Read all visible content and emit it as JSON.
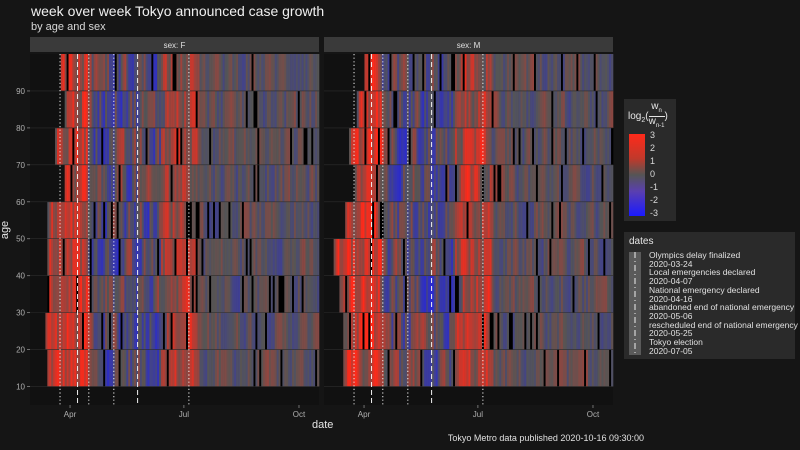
{
  "chart_data": {
    "type": "heatmap",
    "title": "week over week Tokyo announced case growth",
    "subtitle": "by age and sex",
    "xlabel": "date",
    "ylabel": "age",
    "facets": [
      {
        "label": "sex: F"
      },
      {
        "label": "sex: M"
      }
    ],
    "x_ticks": [
      "Apr",
      "Jul",
      "Oct"
    ],
    "y_ticks": [
      10,
      20,
      30,
      40,
      50,
      60,
      70,
      80,
      90
    ],
    "ylim": [
      5,
      100
    ],
    "age_groups": [
      10,
      20,
      30,
      40,
      50,
      60,
      70,
      80,
      90
    ],
    "color_scale": {
      "title_parts": {
        "log": "log",
        "base": "2",
        "num": "w",
        "num_sub": "n",
        "den": "w",
        "den_sub": "n-1"
      },
      "ticks": [
        "3",
        "2",
        "1",
        "0",
        "-1",
        "-2",
        "-3"
      ],
      "low_color": "#1a1aff",
      "mid_color": "#555555",
      "high_color": "#ff2a1a"
    },
    "dates_legend": {
      "title": "dates",
      "entries": [
        {
          "label": "Olympics delay finalized",
          "date": "2020-03-24",
          "style": "dotted"
        },
        {
          "label": "Local emergencies declared",
          "date": "2020-04-07",
          "style": "dashed"
        },
        {
          "label": "National emergency declared",
          "date": "2020-04-16",
          "style": "dotted"
        },
        {
          "label": "abandoned end of national emergency",
          "date": "2020-05-06",
          "style": "dotted"
        },
        {
          "label": "rescheduled end of national emergency",
          "date": "2020-05-25",
          "style": "dashed"
        },
        {
          "label": "Tokyo election",
          "date": "2020-07-05",
          "style": "dotted"
        }
      ]
    },
    "caption": "Tokyo Metro data published 2020-10-16 09:30:00"
  }
}
